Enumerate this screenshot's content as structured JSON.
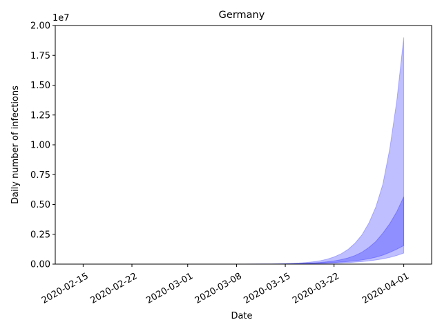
{
  "chart_data": {
    "type": "area",
    "title": "Germany",
    "xlabel": "Date",
    "ylabel": "Daily number of infections",
    "y_offset_label": "1e7",
    "xlim": [
      "2020-02-11",
      "2020-04-05"
    ],
    "ylim": [
      0,
      20000000
    ],
    "x_ticks": [
      "2020-02-15",
      "2020-02-22",
      "2020-03-01",
      "2020-03-08",
      "2020-03-15",
      "2020-03-22",
      "2020-04-01"
    ],
    "y_ticks": [
      0,
      2500000,
      5000000,
      7500000,
      10000000,
      12500000,
      15000000,
      17500000,
      20000000
    ],
    "y_tick_labels": [
      "0.00",
      "0.25",
      "0.50",
      "0.75",
      "1.00",
      "1.25",
      "1.50",
      "1.75",
      "2.00"
    ],
    "grid": false,
    "fill_color": "#0000ff",
    "x": [
      "2020-03-09",
      "2020-03-10",
      "2020-03-11",
      "2020-03-12",
      "2020-03-13",
      "2020-03-14",
      "2020-03-15",
      "2020-03-16",
      "2020-03-17",
      "2020-03-18",
      "2020-03-19",
      "2020-03-20",
      "2020-03-21",
      "2020-03-22",
      "2020-03-23",
      "2020-03-24",
      "2020-03-25",
      "2020-03-26",
      "2020-03-27",
      "2020-03-28",
      "2020-03-29",
      "2020-03-30",
      "2020-03-31",
      "2020-04-01"
    ],
    "series": [
      {
        "lower": [
          1000,
          1500,
          2000,
          3000,
          4500,
          6500,
          9500,
          14000,
          20000,
          28000,
          38000,
          50000,
          65000,
          82000,
          103000,
          130000,
          165000,
          210000,
          270000,
          345000,
          440000,
          560000,
          720000,
          920000
        ],
        "upper": [
          3000,
          5000,
          8000,
          12000,
          18000,
          28000,
          42000,
          62000,
          92000,
          135000,
          195000,
          285000,
          415000,
          600000,
          860000,
          1230000,
          1750000,
          2450000,
          3450000,
          4800000,
          6700000,
          9700000,
          13700000,
          19000000
        ],
        "opacity": 0.25
      },
      {
        "lower": [
          1500,
          2200,
          3200,
          4700,
          6900,
          10000,
          14500,
          21000,
          30000,
          42000,
          58000,
          78000,
          103000,
          133000,
          170000,
          215000,
          275000,
          350000,
          450000,
          580000,
          750000,
          980000,
          1250000,
          1550000
        ],
        "upper": [
          2000,
          3000,
          4500,
          6700,
          10000,
          15000,
          22000,
          32000,
          47000,
          69000,
          100000,
          140000,
          195000,
          270000,
          375000,
          520000,
          720000,
          1000000,
          1400000,
          1900000,
          2600000,
          3400000,
          4400000,
          5650000
        ],
        "opacity": 0.25
      }
    ]
  }
}
